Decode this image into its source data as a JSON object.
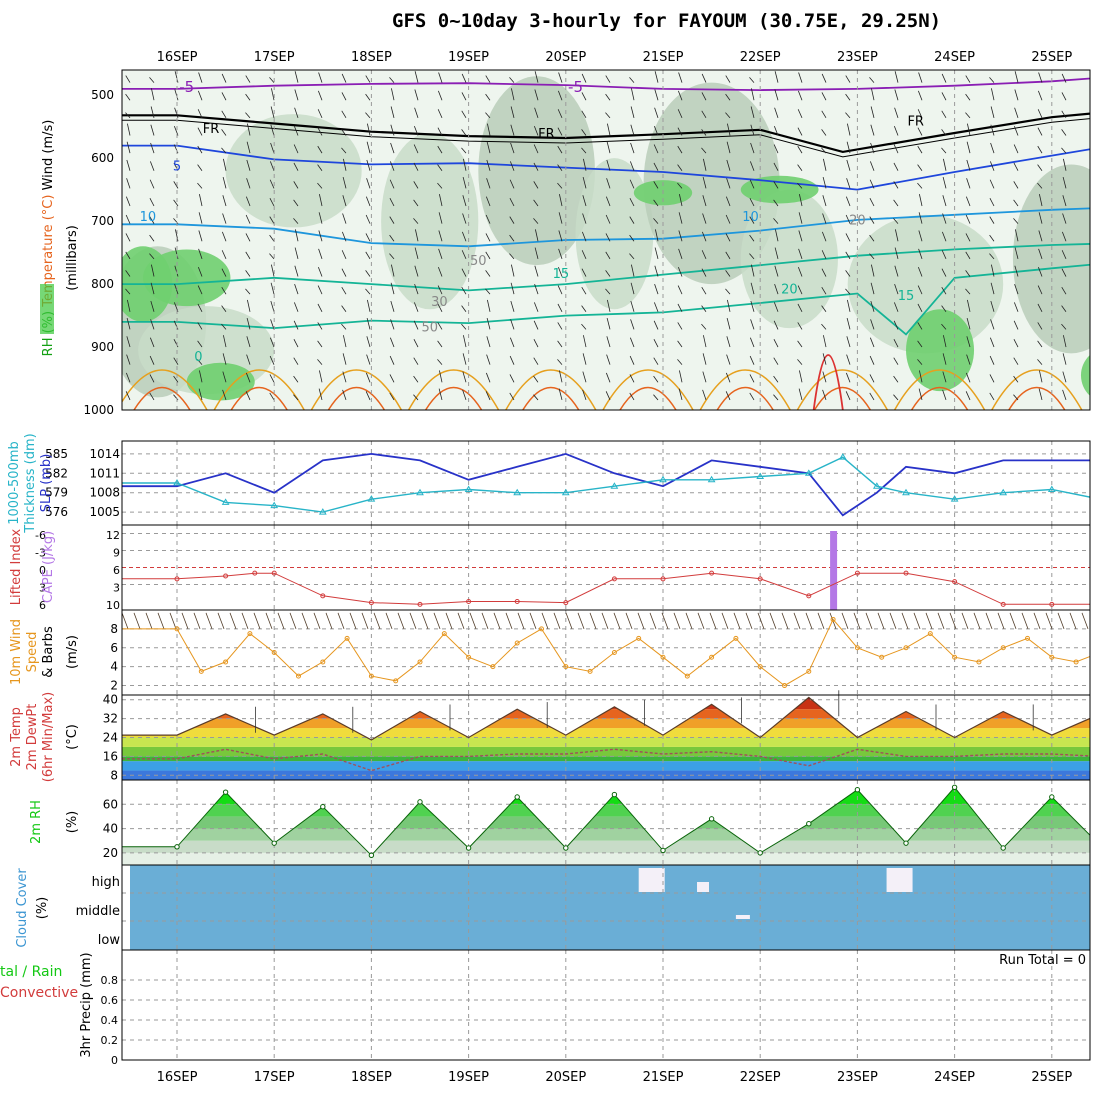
{
  "title": "GFS 0~10day 3-hourly for FAYOUM (30.75E, 29.25N)",
  "day_labels": [
    "16SEP",
    "17SEP",
    "18SEP",
    "19SEP",
    "20SEP",
    "21SEP",
    "22SEP",
    "23SEP",
    "24SEP",
    "25SEP"
  ],
  "colors": {
    "purple": "#8a1eb4",
    "black": "#000000",
    "blue": "#1e46dc",
    "lightblue": "#1e96dc",
    "teal": "#14b496",
    "orange": "#e6a01e",
    "redline": "#dc3232",
    "slp": "#2832c8",
    "thickness": "#28b4c8",
    "cape": "#b478e6",
    "lifted": "#d23c3c",
    "wind": "#e6961e",
    "rh_green": "#14c814",
    "cloud": "#6aaed6",
    "cloud_patch": "#f4f0f8"
  },
  "chart_data": [
    {
      "panel": "upper-air",
      "type": "heatmap",
      "ylabel_parts": [
        "RH (%)",
        "Temperature (°C)",
        "Wind (m/s)"
      ],
      "ylabel2": "(millibars)",
      "y_ticks": [
        500,
        600,
        700,
        800,
        900,
        1000
      ],
      "ylim": [
        460,
        1000
      ],
      "contour_labels": [
        "-5",
        "-5",
        "FR",
        "FR",
        "FR",
        "5",
        "10",
        "10",
        "15",
        "20",
        "15",
        "0",
        "30",
        "50",
        "50",
        "20"
      ],
      "isotherms": [
        {
          "value": -5,
          "x": [
            0,
            1,
            2,
            3,
            4,
            5,
            6,
            7,
            8,
            9,
            9.7
          ],
          "p": [
            490,
            485,
            482,
            481,
            484,
            490,
            492,
            490,
            485,
            478,
            470
          ]
        },
        {
          "value": 0,
          "x": [
            0,
            1,
            2,
            3,
            4,
            5,
            6,
            6.85,
            8,
            9,
            9.7
          ],
          "p": [
            532,
            545,
            558,
            565,
            568,
            562,
            555,
            590,
            560,
            535,
            525
          ]
        },
        {
          "value": 5,
          "x": [
            0,
            1,
            2,
            3,
            4,
            5,
            6,
            7,
            8,
            9,
            9.7
          ],
          "p": [
            580,
            602,
            610,
            608,
            615,
            622,
            635,
            650,
            622,
            596,
            578
          ]
        },
        {
          "value": 10,
          "x": [
            0,
            1,
            2,
            3,
            4,
            5,
            6,
            7,
            8,
            9,
            9.7
          ],
          "p": [
            705,
            712,
            735,
            740,
            730,
            728,
            715,
            698,
            690,
            682,
            678
          ]
        },
        {
          "value": 15,
          "x": [
            0,
            1,
            2,
            3,
            4,
            5,
            6,
            7,
            8,
            9,
            9.7
          ],
          "p": [
            800,
            790,
            800,
            810,
            800,
            785,
            770,
            755,
            745,
            738,
            735
          ]
        },
        {
          "value": 20,
          "x": [
            0,
            1,
            2,
            3,
            4,
            5,
            6,
            7,
            7.5,
            8,
            9,
            9.7
          ],
          "p": [
            860,
            870,
            858,
            862,
            850,
            845,
            830,
            815,
            880,
            790,
            775,
            765
          ]
        }
      ]
    },
    {
      "panel": "slp-thickness",
      "type": "line",
      "ylabel_parts": [
        "1000-500mb",
        "Thickness (dm)",
        "SLP (mb)"
      ],
      "left_ticks": [
        585,
        582,
        579,
        576
      ],
      "right_ticks": [
        1014,
        1011,
        1008,
        1005
      ],
      "slp_range": [
        1003,
        1016
      ],
      "series": [
        {
          "name": "SLP (mb)",
          "x": [
            0,
            0.5,
            1,
            1.5,
            2,
            2.5,
            3,
            3.5,
            4,
            4.5,
            5,
            5.5,
            6,
            6.5,
            6.85,
            7.2,
            7.5,
            8,
            8.5,
            9,
            9.5,
            9.7
          ],
          "values": [
            1009,
            1011,
            1008,
            1013,
            1014,
            1013,
            1010,
            1012,
            1014,
            1011,
            1009,
            1013,
            1012,
            1011,
            1004.5,
            1008,
            1012,
            1011,
            1013,
            1013,
            1013,
            1013
          ]
        },
        {
          "name": "1000-500mb Thickness (dm)",
          "x": [
            0,
            0.5,
            1,
            1.5,
            2,
            2.5,
            3,
            3.5,
            4,
            4.5,
            5,
            5.5,
            6,
            6.5,
            6.85,
            7.2,
            7.5,
            8,
            8.5,
            9,
            9.5,
            9.7
          ],
          "values": [
            580.5,
            577.5,
            577,
            576,
            578,
            579,
            579.5,
            579,
            579,
            580,
            581,
            581,
            581.5,
            582,
            584.5,
            580,
            579,
            578,
            579,
            579.5,
            578,
            579
          ]
        }
      ]
    },
    {
      "panel": "cape-li",
      "type": "line",
      "ylabel_parts": [
        "Lifted Index",
        "CAPE (J/kg)"
      ],
      "li_ticks": [
        "-6",
        "-3",
        "0",
        "3",
        "6"
      ],
      "cape_ticks": [
        "12",
        "9",
        "6",
        "3",
        "10"
      ],
      "series": [
        {
          "name": "Lifted Index",
          "x": [
            0,
            0.5,
            0.8,
            1,
            1.5,
            2,
            2.5,
            3,
            3.5,
            4,
            4.5,
            5,
            5.5,
            6,
            6.5,
            7,
            7.5,
            8,
            8.5,
            9,
            9.7
          ],
          "values": [
            2,
            1.5,
            1,
            1,
            5,
            6.2,
            6.5,
            6,
            6,
            6.2,
            2,
            2,
            1,
            2,
            5,
            1,
            1,
            2.5,
            6.5,
            6.5,
            6.5
          ]
        },
        {
          "name": "CAPE (J/kg)",
          "x": [
            6.75
          ],
          "values": [
            14
          ]
        }
      ]
    },
    {
      "panel": "wind",
      "type": "line",
      "ylabel_parts": [
        "10m Wind",
        "Speed",
        "& Barbs"
      ],
      "ylabel2": "(m/s)",
      "y_ticks": [
        8,
        6,
        4,
        2
      ],
      "ylim": [
        1,
        10
      ],
      "series": [
        {
          "name": "10m Wind Speed",
          "x": [
            0,
            0.25,
            0.5,
            0.75,
            1,
            1.25,
            1.5,
            1.75,
            2,
            2.25,
            2.5,
            2.75,
            3,
            3.25,
            3.5,
            3.75,
            4,
            4.25,
            4.5,
            4.75,
            5,
            5.25,
            5.5,
            5.75,
            6,
            6.25,
            6.5,
            6.75,
            7,
            7.25,
            7.5,
            7.75,
            8,
            8.25,
            8.5,
            8.75,
            9,
            9.25,
            9.5,
            9.75
          ],
          "values": [
            8,
            3.5,
            4.5,
            7.5,
            5.5,
            3,
            4.5,
            7,
            3,
            2.5,
            4.5,
            7.5,
            5,
            4,
            6.5,
            8,
            4,
            3.5,
            5.5,
            7,
            5,
            3,
            5,
            7,
            4,
            2,
            3.5,
            9,
            6,
            5,
            6,
            7.5,
            5,
            4.5,
            6,
            7,
            5,
            4.5,
            5.5,
            8
          ]
        }
      ]
    },
    {
      "panel": "temperature",
      "type": "area",
      "ylabel_parts": [
        "2m Temp",
        "2m DewPt",
        "(6hr Min/Max)"
      ],
      "ylabel2": "(°C)",
      "y_ticks": [
        40,
        32,
        24,
        16,
        8
      ],
      "ylim": [
        6,
        42
      ],
      "series": [
        {
          "name": "2m Temp",
          "x": [
            0,
            0.5,
            1,
            1.5,
            2,
            2.5,
            3,
            3.5,
            4,
            4.5,
            5,
            5.5,
            6,
            6.5,
            7,
            7.5,
            8,
            8.5,
            9,
            9.5,
            9.7
          ],
          "values": [
            25,
            34,
            25,
            34,
            23,
            35,
            24,
            36,
            25,
            37,
            25,
            38,
            24,
            41,
            24,
            35,
            24,
            35,
            25,
            34,
            22
          ]
        },
        {
          "name": "2m DewPt",
          "x": [
            0,
            0.5,
            1,
            1.5,
            2,
            2.5,
            3,
            3.5,
            4,
            4.5,
            5,
            5.5,
            6,
            6.5,
            7,
            7.5,
            8,
            8.5,
            9,
            9.5,
            9.7
          ],
          "values": [
            15,
            19,
            15,
            17,
            10,
            16,
            16,
            17,
            17,
            19,
            17,
            18,
            16,
            12,
            19,
            16,
            16,
            17,
            17,
            16,
            16
          ]
        }
      ]
    },
    {
      "panel": "rh",
      "type": "area",
      "ylabel_parts": [
        "2m RH"
      ],
      "ylabel2": "(%)",
      "y_ticks": [
        60,
        40,
        20
      ],
      "ylim": [
        10,
        80
      ],
      "series": [
        {
          "name": "2m RH",
          "x": [
            0,
            0.5,
            1,
            1.5,
            2,
            2.5,
            3,
            3.5,
            4,
            4.5,
            5,
            5.5,
            6,
            6.5,
            7,
            7.5,
            8,
            8.5,
            9,
            9.5,
            9.7
          ],
          "values": [
            25,
            70,
            28,
            58,
            18,
            62,
            24,
            66,
            24,
            68,
            22,
            48,
            20,
            44,
            72,
            28,
            74,
            24,
            66,
            26,
            62
          ]
        }
      ]
    },
    {
      "panel": "cloud",
      "type": "bar",
      "ylabel_parts": [
        "Cloud Cover",
        "(%)"
      ],
      "y_ticks": [
        "high",
        "middle",
        "low"
      ]
    },
    {
      "panel": "precip",
      "type": "bar",
      "ylabel_parts": [
        "tal / Rain",
        "Convective"
      ],
      "ylabel2": "3hr Precip (mm)",
      "y_ticks": [
        0.8,
        0.6,
        0.4,
        0.2,
        0
      ],
      "ylim": [
        0,
        1
      ],
      "run_total": "Run Total = 0",
      "values": []
    }
  ]
}
